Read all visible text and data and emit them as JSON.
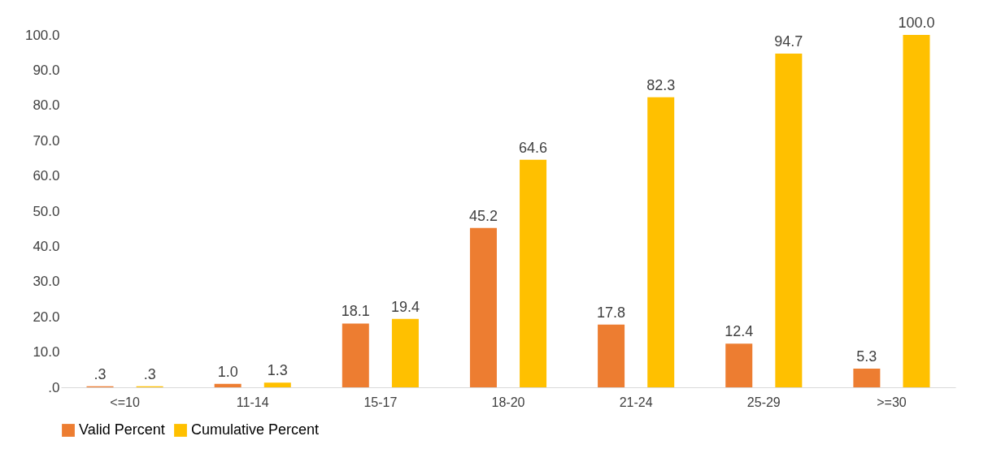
{
  "chart_data": {
    "type": "bar",
    "categories": [
      "<=10",
      "11-14",
      "15-17",
      "18-20",
      "21-24",
      "25-29",
      ">=30"
    ],
    "series": [
      {
        "name": "Valid Percent",
        "color": "#ed7d31",
        "values": [
          0.3,
          1.0,
          18.1,
          45.2,
          17.8,
          12.4,
          5.3
        ],
        "value_labels": [
          ".3",
          "1.0",
          "18.1",
          "45.2",
          "17.8",
          "12.4",
          "5.3"
        ]
      },
      {
        "name": "Cumulative Percent",
        "color": "#ffc000",
        "values": [
          0.3,
          1.3,
          19.4,
          64.6,
          82.3,
          94.7,
          100.0
        ],
        "value_labels": [
          ".3",
          "1.3",
          "19.4",
          "64.6",
          "82.3",
          "94.7",
          "100.0"
        ]
      }
    ],
    "ylim": [
      0,
      100
    ],
    "yticks": [
      {
        "value": 0,
        "label": ".0"
      },
      {
        "value": 10,
        "label": "10.0"
      },
      {
        "value": 20,
        "label": "20.0"
      },
      {
        "value": 30,
        "label": "30.0"
      },
      {
        "value": 40,
        "label": "40.0"
      },
      {
        "value": 50,
        "label": "50.0"
      },
      {
        "value": 60,
        "label": "60.0"
      },
      {
        "value": 70,
        "label": "70.0"
      },
      {
        "value": 80,
        "label": "80.0"
      },
      {
        "value": 90,
        "label": "90.0"
      },
      {
        "value": 100,
        "label": "100.0"
      }
    ],
    "grid": false,
    "legend": "bottom"
  }
}
